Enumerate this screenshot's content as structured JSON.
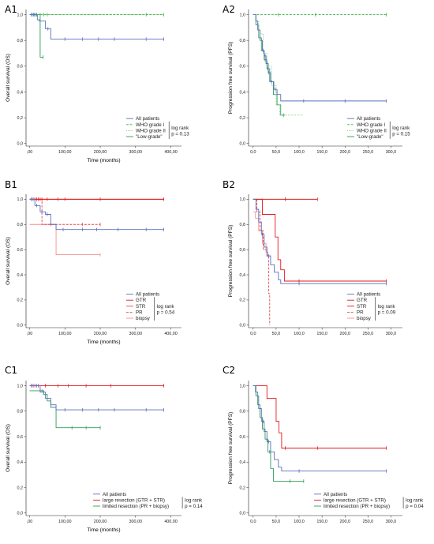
{
  "chart_data": [
    {
      "panel_label": "A1",
      "type": "line",
      "xlabel": "Time (months)",
      "ylabel": "Overall survival (OS)",
      "xlim": [
        -10,
        430
      ],
      "ylim": [
        -0.02,
        1.04
      ],
      "x_ticks": [
        0,
        100,
        200,
        300,
        400
      ],
      "x_tick_labels": [
        ",00",
        "100,00",
        "200,00",
        "300,00",
        "400,00"
      ],
      "y_ticks": [
        0,
        0.2,
        0.4,
        0.6,
        0.8,
        1.0
      ],
      "y_tick_labels": [
        "0,0",
        "0,2",
        "0,4",
        "0,6",
        "0,8",
        "1,0"
      ],
      "legend_position": "bottom-right",
      "stat_label": "log rank",
      "stat_value": "p = 0.13",
      "stat_series": [
        1,
        2,
        3
      ],
      "series": [
        {
          "name": "All patients",
          "color": "#5b6fbd",
          "dash": "solid",
          "x": [
            0,
            12,
            22,
            28,
            45,
            60,
            80,
            380
          ],
          "y": [
            1.0,
            1.0,
            0.96,
            0.95,
            0.89,
            0.81,
            0.81,
            0.81
          ],
          "censor_x": [
            5,
            10,
            14,
            18,
            52,
            100,
            150,
            195,
            240,
            330,
            380
          ]
        },
        {
          "name": "WHO grade I",
          "color": "#3cb44b",
          "dash": "dashed",
          "x": [
            0,
            380
          ],
          "y": [
            1.0,
            1.0
          ],
          "censor_x": [
            6,
            12,
            20,
            30,
            40,
            50,
            330,
            380
          ]
        },
        {
          "name": "WHO grade II",
          "color": "#7fc97f",
          "dash": "dotted",
          "x": [
            0,
            380
          ],
          "y": [
            1.0,
            1.0
          ],
          "censor_x": []
        },
        {
          "name": "\"Low-grade\"",
          "color": "#2e9e5b",
          "dash": "solid",
          "x": [
            0,
            22,
            30,
            38
          ],
          "y": [
            1.0,
            1.0,
            0.67,
            0.67
          ],
          "censor_x": [
            38
          ]
        }
      ]
    },
    {
      "panel_label": "A2",
      "type": "line",
      "xlabel": "",
      "ylabel": "Progression free survival (PFS)",
      "xlim": [
        -10,
        325
      ],
      "ylim": [
        -0.02,
        1.04
      ],
      "x_ticks": [
        0,
        50,
        100,
        150,
        200,
        250,
        300
      ],
      "x_tick_labels": [
        "0,0",
        "50,0",
        "100,0",
        "150,0",
        "200,0",
        "250,0",
        "300,0"
      ],
      "y_ticks": [
        0,
        0.2,
        0.4,
        0.6,
        0.8,
        1.0
      ],
      "y_tick_labels": [
        "0,0",
        "0,2",
        "0,4",
        "0,6",
        "0,8",
        "1,0"
      ],
      "legend_position": "bottom-right",
      "stat_label": "log rank",
      "stat_value": "p = 0.15",
      "stat_series": [
        1,
        2,
        3
      ],
      "series": [
        {
          "name": "All patients",
          "color": "#5b6fbd",
          "dash": "solid",
          "x": [
            0,
            6,
            10,
            15,
            20,
            24,
            28,
            33,
            38,
            45,
            52,
            60,
            290
          ],
          "y": [
            1.0,
            0.95,
            0.88,
            0.8,
            0.72,
            0.68,
            0.62,
            0.55,
            0.48,
            0.42,
            0.38,
            0.33,
            0.33
          ],
          "censor_x": [
            22,
            26,
            30,
            34,
            40,
            48,
            110,
            200,
            290
          ]
        },
        {
          "name": "WHO grade I",
          "color": "#3cb44b",
          "dash": "dashed",
          "x": [
            0,
            290
          ],
          "y": [
            1.0,
            1.0
          ],
          "censor_x": [
            55,
            135,
            290
          ]
        },
        {
          "name": "WHO grade II",
          "color": "#7fc97f",
          "dash": "dotted",
          "x": [
            0,
            5,
            12,
            22,
            30,
            40,
            50,
            58,
            110
          ],
          "y": [
            1.0,
            0.95,
            0.85,
            0.7,
            0.6,
            0.45,
            0.3,
            0.22,
            0.22
          ],
          "censor_x": []
        },
        {
          "name": "\"Low-grade\"",
          "color": "#2e9e5b",
          "dash": "solid",
          "x": [
            0,
            6,
            12,
            18,
            24,
            30,
            36,
            44,
            52,
            60,
            70
          ],
          "y": [
            1.0,
            0.92,
            0.82,
            0.72,
            0.65,
            0.58,
            0.48,
            0.38,
            0.3,
            0.22,
            0.22
          ],
          "censor_x": [
            26,
            32,
            66
          ]
        }
      ]
    },
    {
      "panel_label": "B1",
      "type": "line",
      "xlabel": "Time (months)",
      "ylabel": "Overall survival (OS)",
      "xlim": [
        -10,
        430
      ],
      "ylim": [
        -0.02,
        1.04
      ],
      "x_ticks": [
        0,
        100,
        200,
        300,
        400
      ],
      "x_tick_labels": [
        ",00",
        "100,00",
        "200,00",
        "300,00",
        "400,00"
      ],
      "y_ticks": [
        0,
        0.2,
        0.4,
        0.6,
        0.8,
        1.0
      ],
      "y_tick_labels": [
        "0,0",
        "0,2",
        "0,4",
        "0,6",
        "0,8",
        "1,0"
      ],
      "legend_position": "bottom-right",
      "stat_label": "log rank",
      "stat_value": "p = 0.54",
      "stat_series": [
        1,
        2,
        3,
        4
      ],
      "series": [
        {
          "name": "All patients",
          "color": "#5b6fbd",
          "dash": "solid",
          "x": [
            0,
            15,
            25,
            30,
            45,
            60,
            75,
            380
          ],
          "y": [
            1.0,
            0.95,
            0.95,
            0.9,
            0.88,
            0.8,
            0.76,
            0.76
          ],
          "censor_x": [
            5,
            10,
            20,
            35,
            50,
            95,
            150,
            190,
            250,
            330,
            380
          ]
        },
        {
          "name": "GTR",
          "color": "#e31a1c",
          "dash": "solid",
          "x": [
            0,
            380
          ],
          "y": [
            1.0,
            1.0
          ],
          "censor_x": [
            5,
            10,
            15,
            20,
            25,
            30,
            35,
            50,
            80,
            100,
            200,
            380
          ]
        },
        {
          "name": "STR",
          "color": "#e34a4a",
          "dash": "solid",
          "x": [
            0,
            380
          ],
          "y": [
            1.0,
            1.0
          ],
          "censor_x": []
        },
        {
          "name": "PR",
          "color": "#e34a4a",
          "dash": "dashed",
          "x": [
            0,
            25,
            35,
            200
          ],
          "y": [
            1.0,
            1.0,
            0.8,
            0.8
          ],
          "censor_x": [
            60,
            150,
            200
          ]
        },
        {
          "name": "biopsy",
          "color": "#f49090",
          "dash": "solid",
          "x": [
            0,
            40,
            75,
            200
          ],
          "y": [
            0.8,
            0.8,
            0.56,
            0.56
          ],
          "censor_x": [
            200
          ]
        }
      ]
    },
    {
      "panel_label": "B2",
      "type": "line",
      "xlabel": "",
      "ylabel": "Progression free survival (PFS)",
      "xlim": [
        -10,
        325
      ],
      "ylim": [
        -0.02,
        1.04
      ],
      "x_ticks": [
        0,
        50,
        100,
        150,
        200,
        250,
        300
      ],
      "x_tick_labels": [
        "0,0",
        "50,0",
        "100,0",
        "150,0",
        "200,0",
        "250,0",
        "300,0"
      ],
      "y_ticks": [
        0,
        0.2,
        0.4,
        0.6,
        0.8,
        1.0
      ],
      "y_tick_labels": [
        "0,0",
        "0,2",
        "0,4",
        "0,6",
        "0,8",
        "1,0"
      ],
      "legend_position": "bottom-right",
      "stat_label": "log rank",
      "stat_value": "p = 0.09",
      "stat_series": [
        1,
        2,
        3,
        4
      ],
      "series": [
        {
          "name": "All patients",
          "color": "#5b6fbd",
          "dash": "solid",
          "x": [
            0,
            6,
            12,
            18,
            24,
            30,
            38,
            46,
            55,
            60,
            290
          ],
          "y": [
            1.0,
            0.92,
            0.82,
            0.72,
            0.62,
            0.55,
            0.48,
            0.42,
            0.36,
            0.33,
            0.33
          ],
          "censor_x": [
            20,
            34,
            100,
            290
          ]
        },
        {
          "name": "GTR",
          "color": "#e31a1c",
          "dash": "solid",
          "x": [
            0,
            140
          ],
          "y": [
            1.0,
            1.0
          ],
          "censor_x": [
            70,
            140
          ]
        },
        {
          "name": "STR",
          "color": "#e31a1c",
          "dash": "solid",
          "x": [
            0,
            20,
            40,
            48,
            54,
            60,
            68,
            290
          ],
          "y": [
            1.0,
            0.88,
            0.88,
            0.7,
            0.52,
            0.44,
            0.35,
            0.35
          ],
          "censor_x": [
            100,
            290
          ]
        },
        {
          "name": "PR",
          "color": "#e34a4a",
          "dash": "dashed",
          "x": [
            0,
            8,
            15,
            22,
            30,
            34,
            36
          ],
          "y": [
            1.0,
            0.9,
            0.75,
            0.6,
            0.55,
            0.25,
            0.0
          ],
          "censor_x": []
        },
        {
          "name": "biopsy",
          "color": "#f49090",
          "dash": "solid",
          "x": [
            0,
            5,
            12,
            20,
            28,
            32,
            38
          ],
          "y": [
            0.9,
            0.85,
            0.75,
            0.65,
            0.58,
            0.55,
            0.55
          ],
          "censor_x": []
        }
      ]
    },
    {
      "panel_label": "C1",
      "type": "line",
      "xlabel": "Time (months)",
      "ylabel": "Overall survival (OS)",
      "xlim": [
        -10,
        430
      ],
      "ylim": [
        -0.02,
        1.04
      ],
      "x_ticks": [
        0,
        100,
        200,
        300,
        400
      ],
      "x_tick_labels": [
        ",00",
        "100,00",
        "200,00",
        "300,00",
        "400,00"
      ],
      "y_ticks": [
        0,
        0.2,
        0.4,
        0.6,
        0.8,
        1.0
      ],
      "y_tick_labels": [
        "0,0",
        "0,2",
        "0,4",
        "0,6",
        "0,8",
        "1,0"
      ],
      "legend_position": "bottom-right",
      "stat_label": "log rank",
      "stat_value": "p = 0.14",
      "stat_series": [
        1,
        2
      ],
      "series": [
        {
          "name": "All patients",
          "color": "#5b6fbd",
          "dash": "solid",
          "x": [
            0,
            15,
            30,
            45,
            60,
            75,
            380
          ],
          "y": [
            1.0,
            1.0,
            0.95,
            0.9,
            0.85,
            0.81,
            0.81
          ],
          "censor_x": [
            5,
            10,
            20,
            40,
            100,
            150,
            195,
            240,
            330,
            380
          ]
        },
        {
          "name": "large resection (GTR + STR)",
          "color": "#e31a1c",
          "dash": "solid",
          "x": [
            0,
            380
          ],
          "y": [
            1.0,
            1.0
          ],
          "censor_x": [
            5,
            10,
            15,
            25,
            45,
            80,
            110,
            160,
            230,
            380
          ]
        },
        {
          "name": "limited resection (PR + biopsy)",
          "color": "#2e9e5b",
          "dash": "solid",
          "x": [
            0,
            25,
            40,
            50,
            60,
            75,
            200
          ],
          "y": [
            0.96,
            0.96,
            0.93,
            0.88,
            0.83,
            0.67,
            0.67
          ],
          "censor_x": [
            30,
            35,
            120,
            160,
            200
          ]
        }
      ]
    },
    {
      "panel_label": "C2",
      "type": "line",
      "xlabel": "",
      "ylabel": "Progression free survival (PFS)",
      "xlim": [
        -10,
        325
      ],
      "ylim": [
        -0.02,
        1.04
      ],
      "x_ticks": [
        0,
        50,
        100,
        150,
        200,
        250,
        300
      ],
      "x_tick_labels": [
        "0,0",
        "50,0",
        "100,0",
        "150,0",
        "200,0",
        "250,0",
        "300,0"
      ],
      "y_ticks": [
        0,
        0.2,
        0.4,
        0.6,
        0.8,
        1.0
      ],
      "y_tick_labels": [
        "0,0",
        "0,2",
        "0,4",
        "0,6",
        "0,8",
        "1,0"
      ],
      "legend_position": "bottom-right",
      "stat_label": "log rank",
      "stat_value": "p = 0.04",
      "stat_series": [
        1,
        2
      ],
      "series": [
        {
          "name": "All patients",
          "color": "#5b6fbd",
          "dash": "solid",
          "x": [
            0,
            6,
            12,
            18,
            24,
            30,
            38,
            46,
            55,
            62,
            290
          ],
          "y": [
            1.0,
            0.92,
            0.82,
            0.72,
            0.64,
            0.56,
            0.48,
            0.42,
            0.36,
            0.33,
            0.33
          ],
          "censor_x": [
            22,
            34,
            100,
            290
          ]
        },
        {
          "name": "large resection (GTR + STR)",
          "color": "#e31a1c",
          "dash": "solid",
          "x": [
            0,
            20,
            30,
            42,
            50,
            56,
            62,
            290
          ],
          "y": [
            1.0,
            1.0,
            0.9,
            0.9,
            0.72,
            0.63,
            0.51,
            0.51
          ],
          "censor_x": [
            70,
            140,
            290
          ]
        },
        {
          "name": "limited resection (PR + biopsy)",
          "color": "#2e9e5b",
          "dash": "solid",
          "x": [
            0,
            5,
            10,
            15,
            20,
            26,
            32,
            38,
            44,
            110
          ],
          "y": [
            1.0,
            0.95,
            0.85,
            0.75,
            0.66,
            0.58,
            0.48,
            0.35,
            0.25,
            0.25
          ],
          "censor_x": [
            30,
            36,
            80,
            110
          ]
        }
      ]
    }
  ]
}
